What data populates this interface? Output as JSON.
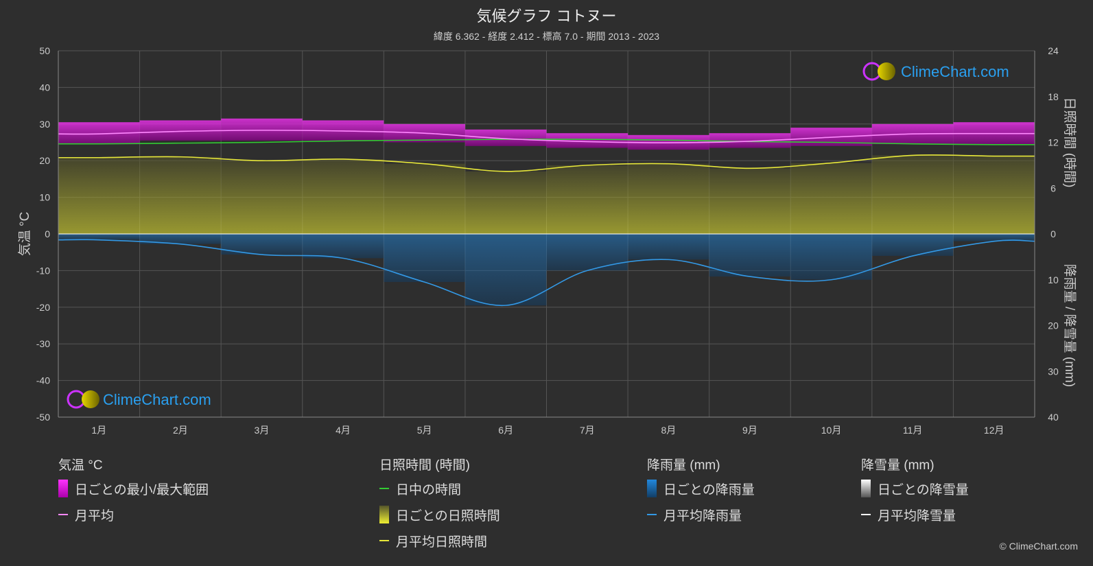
{
  "header": {
    "title": "気候グラフ コトヌー",
    "subtitle": "緯度 6.362 - 経度 2.412 - 標高 7.0 - 期間 2013 - 2023"
  },
  "watermark": {
    "text": "ClimeChart.com"
  },
  "copyright": "© ClimeChart.com",
  "colors": {
    "background": "#2e2e2e",
    "temp_range": "#cc00cc",
    "temp_avg": "#ff88ff",
    "daylight": "#33cc33",
    "sunshine_fill": "#b3b33a",
    "sunshine_avg": "#e8e83a",
    "rain": "#1f7fc4",
    "rain_avg": "#3399e6",
    "snow": "#ffffff"
  },
  "chart_data": {
    "type": "line",
    "categories": [
      "1月",
      "2月",
      "3月",
      "4月",
      "5月",
      "6月",
      "7月",
      "8月",
      "9月",
      "10月",
      "11月",
      "12月"
    ],
    "axes": {
      "left": {
        "label": "気温 °C",
        "min": -50,
        "max": 50,
        "ticks": [
          "50",
          "40",
          "30",
          "20",
          "10",
          "0",
          "-10",
          "-20",
          "-30",
          "-40",
          "-50"
        ]
      },
      "right_top": {
        "label": "日照時間 (時間)",
        "min": 0,
        "max": 24,
        "ticks": [
          "24",
          "18",
          "12",
          "6",
          "0"
        ]
      },
      "right_bottom": {
        "label": "降雨量 / 降雪量 (mm)",
        "min": 0,
        "max": 40,
        "ticks": [
          "0",
          "10",
          "20",
          "30",
          "40"
        ]
      }
    },
    "series": [
      {
        "name": "日ごとの最小/最大範囲 (最高)",
        "unit": "°C",
        "values": [
          30.5,
          31.0,
          31.5,
          31.0,
          30.0,
          28.5,
          27.5,
          27.0,
          27.5,
          29.0,
          30.0,
          30.5
        ]
      },
      {
        "name": "日ごとの最小/最大範囲 (最低)",
        "unit": "°C",
        "values": [
          24.5,
          25.5,
          25.5,
          25.5,
          25.0,
          24.0,
          23.5,
          23.0,
          23.5,
          24.0,
          24.5,
          24.5
        ]
      },
      {
        "name": "月平均",
        "unit": "°C",
        "values": [
          27.3,
          28.0,
          28.3,
          28.1,
          27.5,
          26.0,
          25.2,
          24.9,
          25.3,
          26.4,
          27.3,
          27.4
        ]
      },
      {
        "name": "日中の時間",
        "unit": "時間",
        "values": [
          11.8,
          11.9,
          12.0,
          12.2,
          12.3,
          12.4,
          12.4,
          12.3,
          12.1,
          12.0,
          11.8,
          11.7
        ]
      },
      {
        "name": "月平均日照時間",
        "unit": "時間",
        "values": [
          10.0,
          10.1,
          9.6,
          9.8,
          9.2,
          8.2,
          9.0,
          9.2,
          8.6,
          9.3,
          10.3,
          10.2
        ]
      },
      {
        "name": "月平均降雨量",
        "unit": "mm",
        "values": [
          1.3,
          2.2,
          4.5,
          5.3,
          10.5,
          15.6,
          8.0,
          5.6,
          9.3,
          10.0,
          4.8,
          1.6
        ]
      },
      {
        "name": "月平均降雪量",
        "unit": "mm",
        "values": [
          0,
          0,
          0,
          0,
          0,
          0,
          0,
          0,
          0,
          0,
          0,
          0
        ]
      }
    ]
  },
  "legend": {
    "groups": [
      {
        "title": "気温 °C",
        "items": [
          {
            "label": "日ごとの最小/最大範囲",
            "kind": "box",
            "swatch": "temp_range"
          },
          {
            "label": "月平均",
            "kind": "line",
            "swatch": "temp_avg"
          }
        ]
      },
      {
        "title": "日照時間 (時間)",
        "items": [
          {
            "label": "日中の時間",
            "kind": "line",
            "swatch": "daylight"
          },
          {
            "label": "日ごとの日照時間",
            "kind": "box",
            "swatch": "sunshine_fill"
          },
          {
            "label": "月平均日照時間",
            "kind": "line",
            "swatch": "sunshine_avg"
          }
        ]
      },
      {
        "title": "降雨量 (mm)",
        "items": [
          {
            "label": "日ごとの降雨量",
            "kind": "box",
            "swatch": "rain"
          },
          {
            "label": "月平均降雨量",
            "kind": "line",
            "swatch": "rain_avg"
          }
        ]
      },
      {
        "title": "降雪量 (mm)",
        "items": [
          {
            "label": "日ごとの降雪量",
            "kind": "box",
            "swatch": "snow"
          },
          {
            "label": "月平均降雪量",
            "kind": "line",
            "swatch": "snow"
          }
        ]
      }
    ]
  }
}
